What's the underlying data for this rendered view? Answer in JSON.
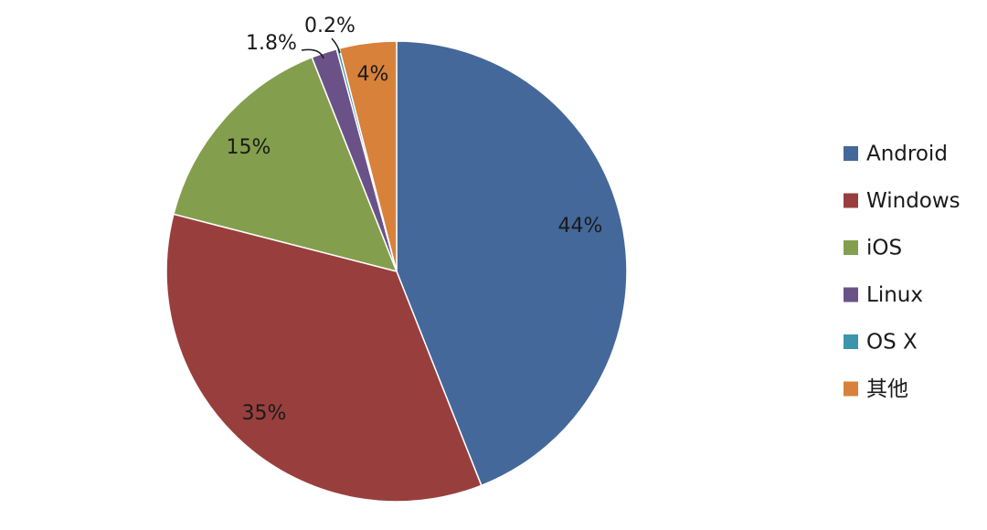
{
  "chart_data": {
    "type": "pie",
    "title": "",
    "legend_position": "right",
    "slices": [
      {
        "label": "Android",
        "value": 44,
        "value_label": "44%",
        "color": "#44689a"
      },
      {
        "label": "Windows",
        "value": 35,
        "value_label": "35%",
        "color": "#983f3e"
      },
      {
        "label": "iOS",
        "value": 15,
        "value_label": "15%",
        "color": "#839f4d"
      },
      {
        "label": "Linux",
        "value": 1.8,
        "value_label": "1.8%",
        "color": "#6a5289"
      },
      {
        "label": "OS X",
        "value": 0.2,
        "value_label": "0.2%",
        "color": "#3b95ab"
      },
      {
        "label": "其他",
        "value": 4,
        "value_label": "4%",
        "color": "#d7813a"
      }
    ]
  }
}
